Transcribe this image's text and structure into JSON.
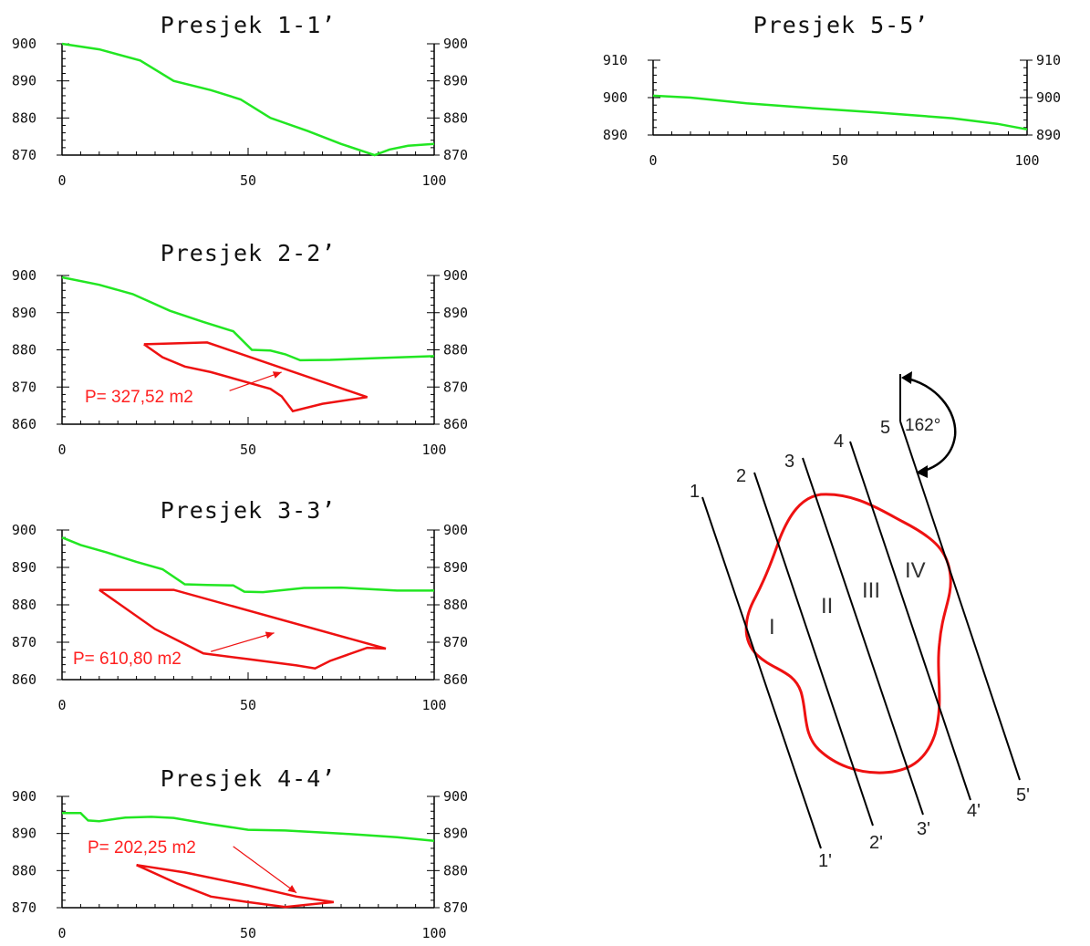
{
  "colors": {
    "terrain": "#22e622",
    "slide": "#ee1111",
    "axis": "#000000",
    "text": "#111111"
  },
  "profiles": [
    {
      "title": "Presjek 1-1’",
      "ylim": [
        870,
        900
      ],
      "yticks": [
        "900",
        "890",
        "880",
        "870"
      ],
      "xticks": [
        "0",
        "50",
        "100"
      ],
      "terrain": [
        [
          0,
          900
        ],
        [
          10,
          898.5
        ],
        [
          21,
          895.5
        ],
        [
          30,
          890
        ],
        [
          40,
          887.5
        ],
        [
          48,
          885
        ],
        [
          56,
          880
        ],
        [
          66,
          876.5
        ],
        [
          75,
          873
        ],
        [
          84,
          870
        ],
        [
          88,
          871.5
        ],
        [
          93,
          872.5
        ],
        [
          100,
          873
        ]
      ],
      "area_label": "",
      "slide_polygon": []
    },
    {
      "title": "Presjek 2-2’",
      "ylim": [
        860,
        900
      ],
      "yticks": [
        "900",
        "890",
        "880",
        "870",
        "860"
      ],
      "xticks": [
        "0",
        "50",
        "100"
      ],
      "terrain": [
        [
          0,
          899.5
        ],
        [
          10,
          897.5
        ],
        [
          19,
          895
        ],
        [
          29,
          890.5
        ],
        [
          38,
          887.5
        ],
        [
          46,
          885
        ],
        [
          51,
          880
        ],
        [
          56,
          879.8
        ],
        [
          60,
          878.8
        ],
        [
          64,
          877.2
        ],
        [
          72,
          877.3
        ],
        [
          85,
          877.8
        ],
        [
          100,
          878.3
        ]
      ],
      "area_label": "P= 327,52 m2",
      "slide_polygon": [
        [
          22,
          881.5
        ],
        [
          39,
          882
        ],
        [
          82,
          867.3
        ],
        [
          70,
          865.5
        ],
        [
          62,
          863.5
        ],
        [
          59,
          867.5
        ],
        [
          56,
          869.5
        ],
        [
          40,
          874
        ],
        [
          33,
          875.5
        ],
        [
          27,
          878
        ],
        [
          22,
          881.5
        ]
      ],
      "arrow": [
        [
          45,
          869
        ],
        [
          59,
          874
        ]
      ]
    },
    {
      "title": "Presjek 3-3’",
      "ylim": [
        860,
        900
      ],
      "yticks": [
        "900",
        "890",
        "880",
        "870",
        "860"
      ],
      "xticks": [
        "0",
        "50",
        "100"
      ],
      "terrain": [
        [
          0,
          898
        ],
        [
          5,
          896
        ],
        [
          12,
          894
        ],
        [
          20,
          891.5
        ],
        [
          27,
          889.5
        ],
        [
          33,
          885.5
        ],
        [
          39,
          885.3
        ],
        [
          46,
          885.2
        ],
        [
          49,
          883.5
        ],
        [
          54,
          883.4
        ],
        [
          65,
          884.5
        ],
        [
          75,
          884.6
        ],
        [
          90,
          883.8
        ],
        [
          100,
          883.8
        ]
      ],
      "area_label": "P= 610,80 m2",
      "slide_polygon": [
        [
          10,
          884
        ],
        [
          30,
          884
        ],
        [
          87,
          868.3
        ],
        [
          82,
          868.5
        ],
        [
          72,
          865
        ],
        [
          68,
          863
        ],
        [
          63,
          863.8
        ],
        [
          50,
          865.5
        ],
        [
          38,
          867
        ],
        [
          25,
          873.5
        ],
        [
          10,
          884
        ]
      ],
      "arrow": [
        [
          40,
          867.5
        ],
        [
          57,
          872.5
        ]
      ]
    },
    {
      "title": "Presjek 4-4’",
      "ylim": [
        870,
        900
      ],
      "yticks": [
        "900",
        "890",
        "880",
        "870"
      ],
      "xticks": [
        "0",
        "50",
        "100"
      ],
      "terrain": [
        [
          0,
          895.5
        ],
        [
          5,
          895.5
        ],
        [
          7,
          893.5
        ],
        [
          10,
          893.3
        ],
        [
          17,
          894.3
        ],
        [
          24,
          894.5
        ],
        [
          30,
          894.2
        ],
        [
          40,
          892.5
        ],
        [
          50,
          891
        ],
        [
          60,
          890.8
        ],
        [
          75,
          890
        ],
        [
          90,
          889
        ],
        [
          100,
          888
        ]
      ],
      "area_label": "P= 202,25 m2",
      "slide_polygon": [
        [
          20,
          881.5
        ],
        [
          33,
          879.5
        ],
        [
          50,
          876
        ],
        [
          63,
          873
        ],
        [
          73,
          871.5
        ],
        [
          68,
          871
        ],
        [
          60,
          870.2
        ],
        [
          50,
          871.5
        ],
        [
          40,
          873
        ],
        [
          31,
          876.5
        ],
        [
          20,
          881.5
        ]
      ],
      "arrow": [
        [
          46,
          886.5
        ],
        [
          63,
          874
        ]
      ]
    },
    {
      "title": "Presjek 5-5’",
      "ylim": [
        890,
        910
      ],
      "yticks": [
        "910",
        "900",
        "890"
      ],
      "xticks": [
        "0",
        "50",
        "100"
      ],
      "terrain": [
        [
          0,
          900.5
        ],
        [
          10,
          900
        ],
        [
          25,
          898.5
        ],
        [
          45,
          897
        ],
        [
          60,
          896
        ],
        [
          80,
          894.5
        ],
        [
          92,
          893
        ],
        [
          100,
          891.5
        ]
      ],
      "area_label": "",
      "slide_polygon": []
    }
  ],
  "plan": {
    "section_labels": [
      "1",
      "2",
      "3",
      "4",
      "5"
    ],
    "section_end_labels": [
      "1'",
      "2'",
      "3'",
      "4'",
      "5'"
    ],
    "zone_labels": [
      "I",
      "II",
      "III",
      "IV"
    ],
    "angle_label": "162°"
  }
}
